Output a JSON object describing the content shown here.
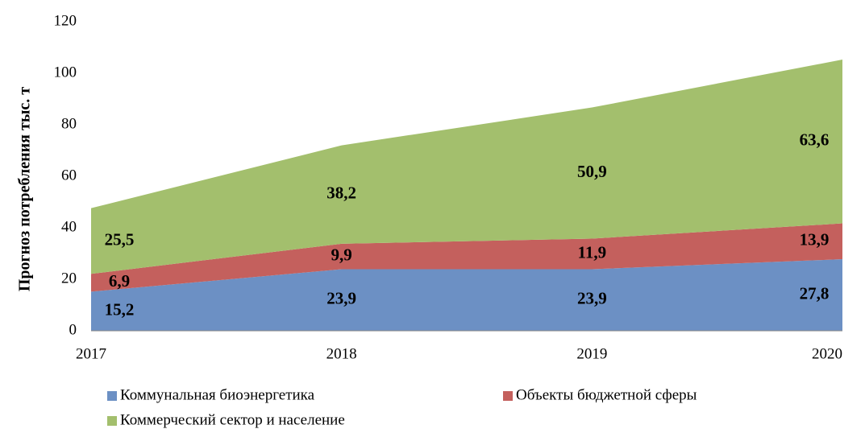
{
  "chart_data": {
    "type": "stacked_area",
    "y_label": "Прогноз потребления тыс. т",
    "categories": [
      "2017",
      "2018",
      "2019",
      "2020"
    ],
    "series": [
      {
        "name": "Коммунальная биоэнергетика",
        "color": "#6c90c4",
        "values": [
          15.2,
          23.9,
          23.9,
          27.8
        ],
        "value_labels": [
          "15,2",
          "23,9",
          "23,9",
          "27,8"
        ]
      },
      {
        "name": "Объекты бюджетной сферы",
        "color": "#c4605d",
        "values": [
          6.9,
          9.9,
          11.9,
          13.9
        ],
        "value_labels": [
          "6,9",
          "9,9",
          "11,9",
          "13,9"
        ]
      },
      {
        "name": "Коммерческий сектор и население",
        "color": "#a3bf6d",
        "values": [
          25.5,
          38.2,
          50.9,
          63.6
        ],
        "value_labels": [
          "25,5",
          "38,2",
          "50,9",
          "63,6"
        ]
      }
    ],
    "ylim": [
      0,
      120
    ],
    "yticks": [
      0,
      20,
      40,
      60,
      80,
      100,
      120
    ],
    "grid": false
  }
}
